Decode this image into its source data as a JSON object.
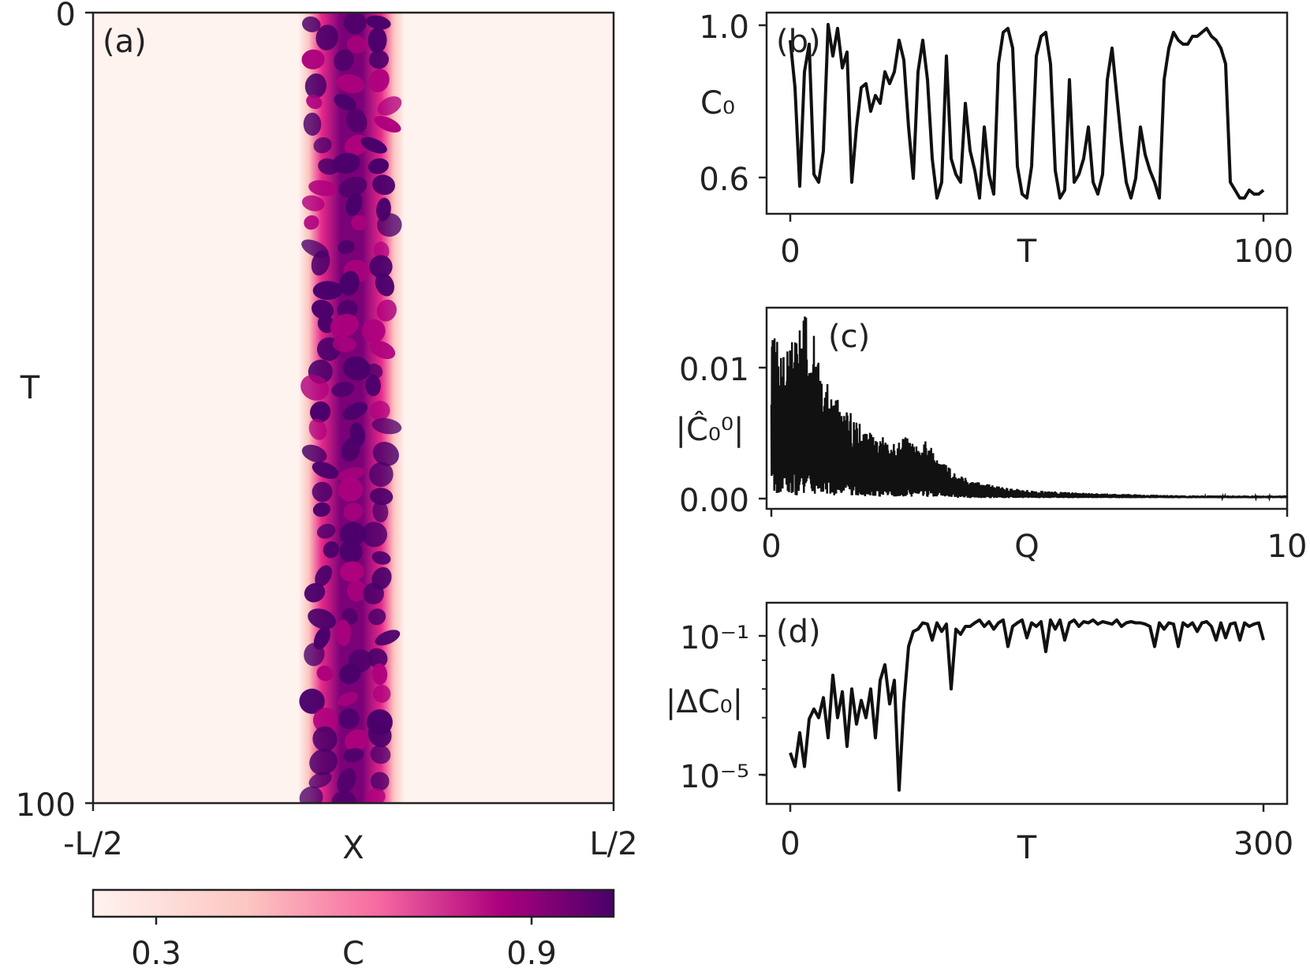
{
  "figure": {
    "colorbar": {
      "label": "C",
      "ticks": [
        "0.3",
        "0.9"
      ],
      "colors": [
        "#fff3f0",
        "#fcc5c0",
        "#f768a1",
        "#ae017e",
        "#49006a"
      ]
    }
  },
  "chart_data": [
    {
      "panel": "(a)",
      "type": "heatmap",
      "xlabel": "X",
      "ylabel": "T",
      "x_ticks": [
        "-L/2",
        "L/2"
      ],
      "y_ticks": [
        "0",
        "100"
      ],
      "ylim": [
        100,
        0
      ],
      "colorbar_label": "C",
      "colorbar_ticks": [
        0.3,
        0.9
      ],
      "background_value": 0.25,
      "band_center": 0.0,
      "band_halfwidth_fraction_of_L": 0.09,
      "band_max_value": 1.0
    },
    {
      "panel": "(b)",
      "type": "line",
      "xlabel": "T",
      "ylabel": "C₀",
      "xlim": [
        0,
        100
      ],
      "ylim": [
        0.52,
        1.03
      ],
      "x_ticks": [
        "0",
        "100"
      ],
      "y_ticks": [
        "0.6",
        "1.0"
      ],
      "x": [
        0,
        1,
        2,
        3,
        4,
        5,
        6,
        7,
        8,
        9,
        10,
        11,
        12,
        13,
        14,
        15,
        16,
        17,
        18,
        19,
        20,
        21,
        22,
        23,
        24,
        25,
        26,
        27,
        28,
        29,
        30,
        31,
        32,
        33,
        34,
        35,
        36,
        37,
        38,
        39,
        40,
        41,
        42,
        43,
        44,
        45,
        46,
        47,
        48,
        49,
        50,
        51,
        52,
        53,
        54,
        55,
        56,
        57,
        58,
        59,
        60,
        61,
        62,
        63,
        64,
        65,
        66,
        67,
        68,
        69,
        70,
        71,
        72,
        73,
        74,
        75,
        76,
        77,
        78,
        79,
        80,
        81,
        82,
        83,
        84,
        85,
        86,
        87,
        88,
        89,
        90,
        91,
        92,
        93,
        94,
        95,
        96,
        97,
        98,
        99,
        100
      ],
      "values": [
        0.96,
        0.84,
        0.59,
        0.88,
        0.95,
        0.62,
        0.6,
        0.68,
        1.0,
        0.92,
        0.99,
        0.89,
        0.93,
        0.6,
        0.74,
        0.84,
        0.85,
        0.78,
        0.82,
        0.8,
        0.88,
        0.85,
        0.88,
        0.96,
        0.91,
        0.74,
        0.61,
        0.88,
        0.96,
        0.86,
        0.66,
        0.56,
        0.6,
        0.92,
        0.66,
        0.62,
        0.6,
        0.8,
        0.68,
        0.63,
        0.56,
        0.74,
        0.62,
        0.57,
        0.9,
        0.98,
        0.99,
        0.94,
        0.64,
        0.57,
        0.56,
        0.64,
        0.92,
        0.97,
        0.98,
        0.9,
        0.63,
        0.56,
        0.58,
        0.86,
        0.6,
        0.62,
        0.66,
        0.74,
        0.6,
        0.57,
        0.62,
        0.86,
        0.94,
        0.82,
        0.7,
        0.6,
        0.56,
        0.61,
        0.74,
        0.67,
        0.63,
        0.6,
        0.56,
        0.86,
        0.94,
        0.98,
        0.96,
        0.95,
        0.95,
        0.97,
        0.97,
        0.98,
        0.99,
        0.97,
        0.96,
        0.94,
        0.9,
        0.6,
        0.58,
        0.56,
        0.56,
        0.58,
        0.57,
        0.57,
        0.58
      ]
    },
    {
      "panel": "(c)",
      "type": "line",
      "xlabel": "Q",
      "ylabel": "|Ĉ₀⁰|",
      "xlim": [
        0,
        10
      ],
      "ylim": [
        -0.0008,
        0.0142
      ],
      "x_ticks": [
        "0",
        "10"
      ],
      "y_ticks": [
        "0.00",
        "0.01"
      ],
      "envelope_x": [
        0.0,
        0.1,
        0.2,
        0.3,
        0.4,
        0.5,
        0.6,
        0.7,
        0.8,
        0.9,
        1.0,
        1.2,
        1.4,
        1.6,
        1.8,
        2.0,
        2.2,
        2.4,
        2.6,
        2.8,
        3.0,
        3.2,
        3.4,
        3.6,
        3.8,
        4.0,
        4.5,
        5.0,
        5.5,
        6.0,
        7.0,
        8.0,
        9.0,
        10.0
      ],
      "envelope_max": [
        0.0123,
        0.0118,
        0.0112,
        0.0109,
        0.0126,
        0.012,
        0.0131,
        0.014,
        0.0128,
        0.011,
        0.0098,
        0.0075,
        0.0072,
        0.006,
        0.0052,
        0.0048,
        0.0045,
        0.0042,
        0.0047,
        0.004,
        0.0045,
        0.003,
        0.0025,
        0.002,
        0.0014,
        0.0012,
        0.0008,
        0.0006,
        0.0005,
        0.0004,
        0.0003,
        0.0002,
        0.0002,
        0.0002
      ],
      "envelope_min": [
        0.0004,
        0.0002,
        0.0003,
        0.0002,
        0.0001,
        0.0002,
        0.0002,
        0.0003,
        0.0003,
        0.0002,
        0.0002,
        0.0002,
        0.0002,
        0.0002,
        0.0001,
        0.0001,
        0.0001,
        0.0001,
        0.0001,
        0.0001,
        0.0001,
        0.0001,
        0.0001,
        0.0,
        0.0,
        0.0,
        0.0,
        0.0,
        0.0,
        0.0,
        0.0,
        0.0,
        0.0,
        0.0
      ]
    },
    {
      "panel": "(d)",
      "type": "line",
      "xlabel": "T",
      "ylabel": "|ΔC₀|",
      "xlim": [
        0,
        300
      ],
      "ylim": [
        1e-07,
        1
      ],
      "log_y": true,
      "x_ticks": [
        "0",
        "300"
      ],
      "y_ticks": [
        "10⁻¹",
        "10⁻⁵"
      ],
      "x": [
        0,
        3,
        6,
        9,
        12,
        15,
        18,
        21,
        24,
        27,
        30,
        33,
        36,
        39,
        42,
        45,
        48,
        51,
        54,
        57,
        60,
        63,
        66,
        69,
        72,
        75,
        78,
        81,
        84,
        87,
        90,
        93,
        96,
        99,
        102,
        105,
        108,
        111,
        114,
        117,
        120,
        123,
        126,
        129,
        132,
        135,
        138,
        141,
        144,
        147,
        150,
        153,
        156,
        159,
        162,
        165,
        168,
        171,
        174,
        177,
        180,
        183,
        186,
        189,
        192,
        195,
        198,
        201,
        204,
        207,
        210,
        213,
        216,
        219,
        222,
        225,
        228,
        231,
        234,
        237,
        240,
        243,
        246,
        249,
        252,
        255,
        258,
        261,
        264,
        267,
        270,
        273,
        276,
        279,
        282,
        285,
        288,
        291,
        294,
        297,
        300
      ],
      "values": [
        6e-06,
        2e-06,
        3e-05,
        2e-06,
        9e-05,
        0.0002,
        0.0001,
        0.0005,
        2e-05,
        0.003,
        0.0001,
        0.0008,
        1e-05,
        0.001,
        6e-05,
        0.0004,
        0.0001,
        0.001,
        2e-05,
        0.002,
        0.007,
        0.0003,
        0.002,
        3e-07,
        0.0003,
        0.03,
        0.1,
        0.12,
        0.2,
        0.18,
        0.05,
        0.2,
        0.1,
        0.18,
        0.001,
        0.12,
        0.08,
        0.15,
        0.15,
        0.2,
        0.25,
        0.15,
        0.22,
        0.12,
        0.2,
        0.25,
        0.03,
        0.15,
        0.2,
        0.25,
        0.06,
        0.2,
        0.15,
        0.22,
        0.02,
        0.25,
        0.12,
        0.25,
        0.05,
        0.2,
        0.25,
        0.15,
        0.22,
        0.2,
        0.25,
        0.18,
        0.22,
        0.2,
        0.18,
        0.25,
        0.15,
        0.2,
        0.22,
        0.2,
        0.2,
        0.18,
        0.15,
        0.03,
        0.2,
        0.12,
        0.2,
        0.18,
        0.03,
        0.2,
        0.15,
        0.2,
        0.1,
        0.2,
        0.22,
        0.15,
        0.05,
        0.2,
        0.06,
        0.18,
        0.2,
        0.05,
        0.2,
        0.15,
        0.18,
        0.2,
        0.05
      ]
    }
  ]
}
